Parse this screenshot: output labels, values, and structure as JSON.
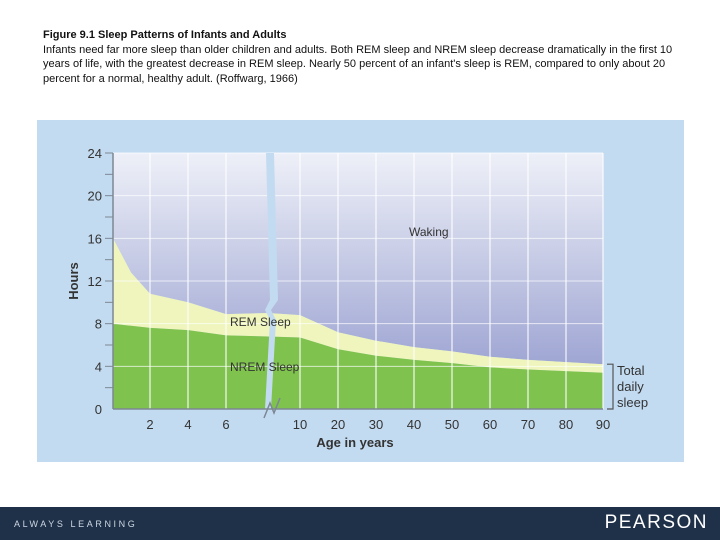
{
  "caption": {
    "figure_label": "Figure 9.1   Sleep Patterns of Infants and Adults",
    "text": "Infants need far more sleep than older children and adults. Both REM sleep and NREM sleep decrease dramatically in the first 10 years of life, with the greatest decrease in REM sleep. Nearly 50 percent of an infant's sleep is REM, compared to only about 20 percent for a normal, healthy adult. (Roffwarg, 1966)"
  },
  "chart_data": {
    "type": "area",
    "xlabel": "Age in years",
    "ylabel": "Hours",
    "ylim": [
      0,
      24
    ],
    "yticks": [
      0,
      4,
      8,
      12,
      16,
      20,
      24
    ],
    "xticks": [
      "2",
      "4",
      "6",
      "10",
      "20",
      "30",
      "40",
      "50",
      "60",
      "70",
      "80",
      "90"
    ],
    "series": [
      {
        "name": "NREM Sleep",
        "values": [
          8.0,
          7.8,
          7.6,
          7.4,
          6.9,
          6.8,
          6.7,
          5.6,
          5.0,
          4.6,
          4.3,
          3.9,
          3.7,
          3.4
        ]
      },
      {
        "name": "REM Sleep",
        "values": [
          8.0,
          5.0,
          3.2,
          2.6,
          2.0,
          2.2,
          2.1,
          1.6,
          1.4,
          1.2,
          1.1,
          1.0,
          0.9,
          0.8
        ]
      },
      {
        "name": "Waking",
        "values": [
          8.0,
          11.2,
          13.2,
          14.0,
          15.1,
          15.0,
          15.2,
          16.8,
          17.6,
          18.2,
          18.6,
          19.1,
          19.4,
          19.8
        ]
      }
    ],
    "bracket_label": "Total daily sleep",
    "colors": {
      "nrem": "#7fc24e",
      "rem": "#eff5bc",
      "waking": "#aeb3d9",
      "panel": "#c3dbf1"
    }
  },
  "footer": {
    "tagline": "ALWAYS LEARNING",
    "brand": "PEARSON"
  }
}
